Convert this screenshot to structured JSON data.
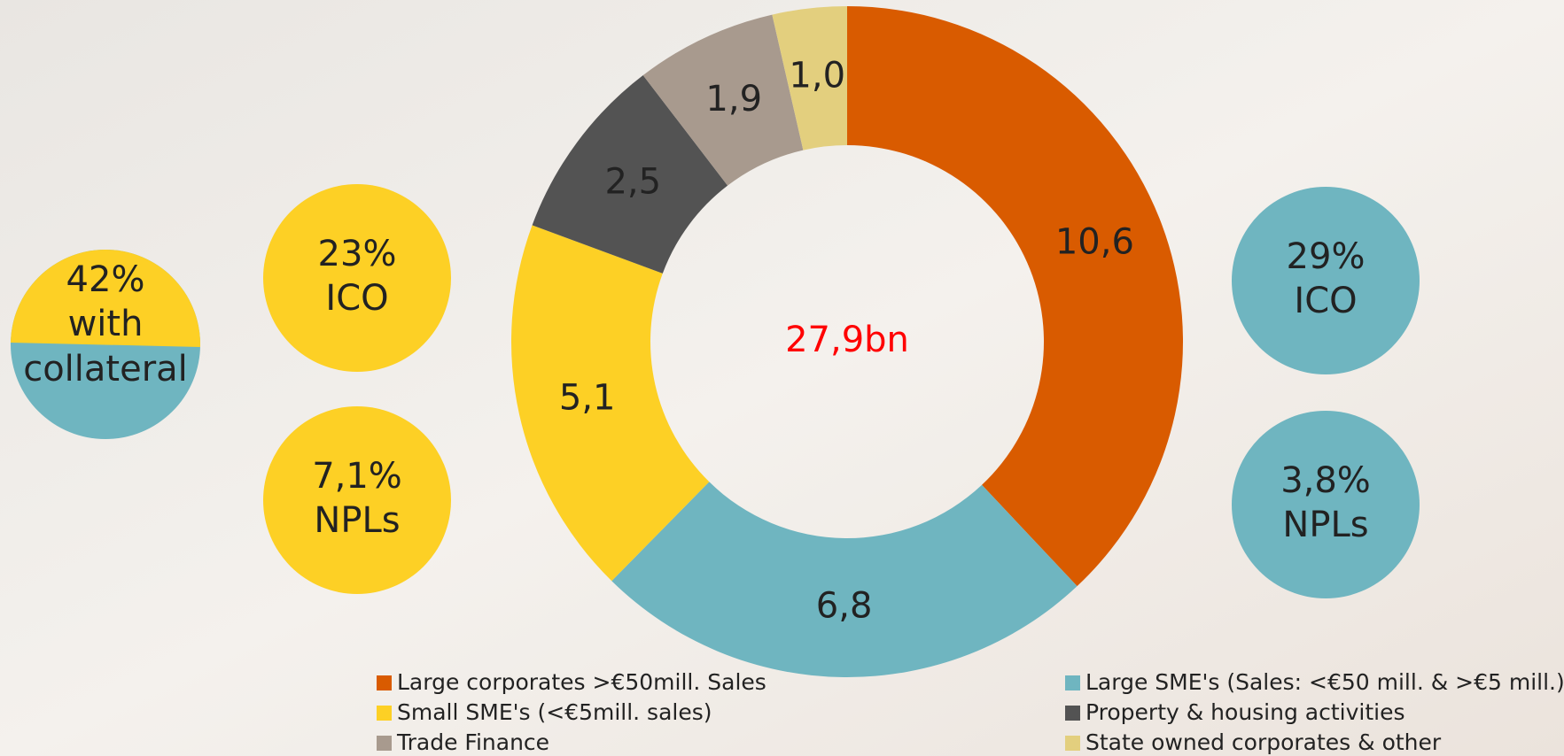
{
  "chart_data": {
    "type": "donut",
    "center_label": "27,9bn",
    "series": [
      {
        "name": "Large corporates >€50mill. Sales",
        "color": "#d95b00",
        "value": 10.6,
        "value_label": "10,6"
      },
      {
        "name": "Large SME's (Sales: <€50 mill. & >€5 mill.)",
        "color": "#6fb5c0",
        "value": 6.8,
        "value_label": "6,8"
      },
      {
        "name": "Small SME's (<€5mill. sales)",
        "color": "#fdd025",
        "value": 5.1,
        "value_label": "5,1"
      },
      {
        "name": "Property & housing activities",
        "color": "#535353",
        "value": 2.5,
        "value_label": "2,5"
      },
      {
        "name": "Trade Finance",
        "color": "#a89a8e",
        "value": 1.9,
        "value_label": "1,9"
      },
      {
        "name": "State owned corporates & other",
        "color": "#e3cf7e",
        "value": 1.0,
        "value_label": "1,0"
      }
    ]
  },
  "collateral": [
    "42%",
    "with",
    "collateral"
  ],
  "left_stats": [
    [
      "23%",
      "ICO"
    ],
    [
      "7,1%",
      "NPLs"
    ]
  ],
  "right_stats": [
    [
      "29%",
      "ICO"
    ],
    [
      "3,8%",
      "NPLs"
    ]
  ]
}
